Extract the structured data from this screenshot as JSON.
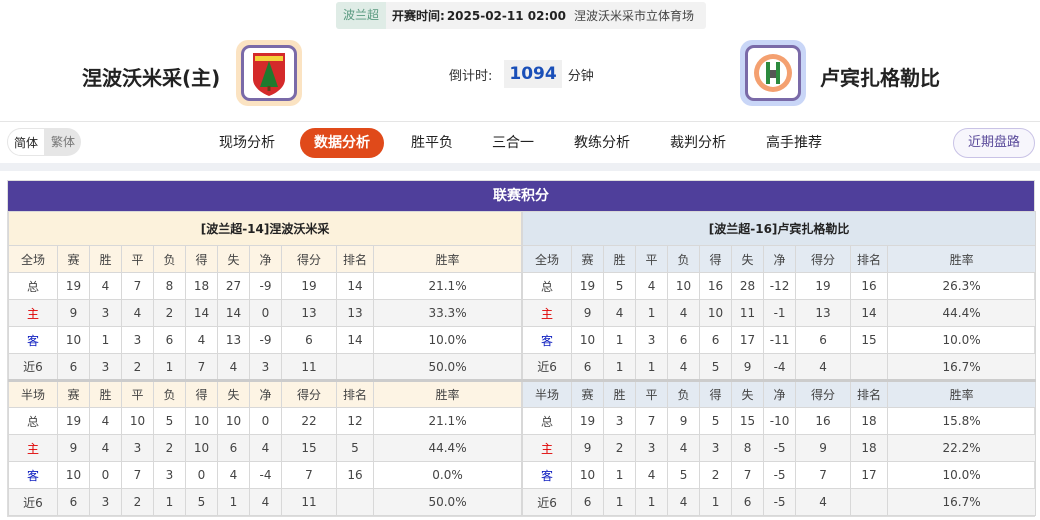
{
  "header": {
    "league": "波兰超",
    "start_label": "开赛时间:",
    "start_time": "2025-02-11 02:00",
    "venue": "涅波沃米采市立体育场"
  },
  "home": {
    "name": "涅波沃米采(主)",
    "logo_text": "PUSZCZA",
    "accent": "#fbe3c2"
  },
  "away": {
    "name": "卢宾扎格勒比",
    "accent": "#c9d6f7"
  },
  "countdown": {
    "label": "倒计时:",
    "value": "1094",
    "unit": "分钟"
  },
  "nav": {
    "lang": [
      "简体",
      "繁体"
    ],
    "tabs": [
      "现场分析",
      "数据分析",
      "胜平负",
      "三合一",
      "教练分析",
      "裁判分析",
      "高手推荐"
    ],
    "active": 1,
    "recent": "近期盘路"
  },
  "standings": {
    "title": "联赛积分",
    "cols": [
      "赛",
      "胜",
      "平",
      "负",
      "得",
      "失",
      "净",
      "得分",
      "排名",
      "胜率"
    ],
    "tables": [
      {
        "caption": "[波兰超-14]涅波沃米采",
        "full_label": "全场",
        "half_label": "半场",
        "full": [
          [
            "总",
            "19",
            "4",
            "7",
            "8",
            "18",
            "27",
            "-9",
            "19",
            "14",
            "21.1%"
          ],
          [
            "主",
            "9",
            "3",
            "4",
            "2",
            "14",
            "14",
            "0",
            "13",
            "13",
            "33.3%"
          ],
          [
            "客",
            "10",
            "1",
            "3",
            "6",
            "4",
            "13",
            "-9",
            "6",
            "14",
            "10.0%"
          ],
          [
            "近6",
            "6",
            "3",
            "2",
            "1",
            "7",
            "4",
            "3",
            "11",
            "",
            "50.0%"
          ]
        ],
        "half": [
          [
            "总",
            "19",
            "4",
            "10",
            "5",
            "10",
            "10",
            "0",
            "22",
            "12",
            "21.1%"
          ],
          [
            "主",
            "9",
            "4",
            "3",
            "2",
            "10",
            "6",
            "4",
            "15",
            "5",
            "44.4%"
          ],
          [
            "客",
            "10",
            "0",
            "7",
            "3",
            "0",
            "4",
            "-4",
            "7",
            "16",
            "0.0%"
          ],
          [
            "近6",
            "6",
            "3",
            "2",
            "1",
            "5",
            "1",
            "4",
            "11",
            "",
            "50.0%"
          ]
        ]
      },
      {
        "caption": "[波兰超-16]卢宾扎格勒比",
        "full_label": "全场",
        "half_label": "半场",
        "full": [
          [
            "总",
            "19",
            "5",
            "4",
            "10",
            "16",
            "28",
            "-12",
            "19",
            "16",
            "26.3%"
          ],
          [
            "主",
            "9",
            "4",
            "1",
            "4",
            "10",
            "11",
            "-1",
            "13",
            "14",
            "44.4%"
          ],
          [
            "客",
            "10",
            "1",
            "3",
            "6",
            "6",
            "17",
            "-11",
            "6",
            "15",
            "10.0%"
          ],
          [
            "近6",
            "6",
            "1",
            "1",
            "4",
            "5",
            "9",
            "-4",
            "4",
            "",
            "16.7%"
          ]
        ],
        "half": [
          [
            "总",
            "19",
            "3",
            "7",
            "9",
            "5",
            "15",
            "-10",
            "16",
            "18",
            "15.8%"
          ],
          [
            "主",
            "9",
            "2",
            "3",
            "4",
            "3",
            "8",
            "-5",
            "9",
            "18",
            "22.2%"
          ],
          [
            "客",
            "10",
            "1",
            "4",
            "5",
            "2",
            "7",
            "-5",
            "7",
            "17",
            "10.0%"
          ],
          [
            "近6",
            "6",
            "1",
            "1",
            "4",
            "1",
            "6",
            "-5",
            "4",
            "",
            "16.7%"
          ]
        ]
      }
    ]
  }
}
